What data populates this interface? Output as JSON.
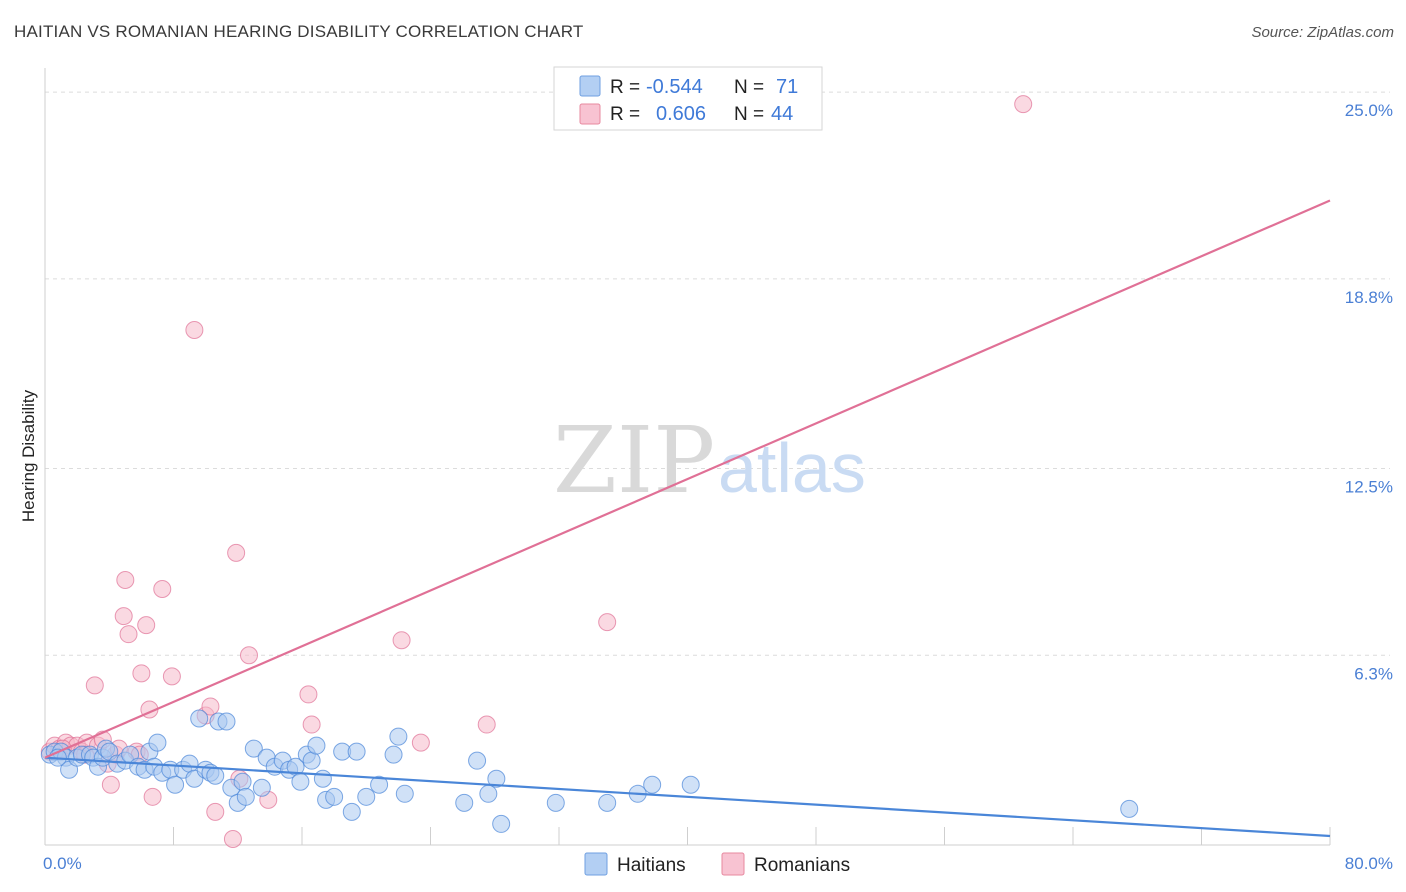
{
  "title": "HAITIAN VS ROMANIAN HEARING DISABILITY CORRELATION CHART",
  "source": "Source: ZipAtlas.com",
  "watermark": {
    "zip": "ZIP",
    "atlas": "atlas"
  },
  "colors": {
    "haitians": "#4a86d8",
    "romanians": "#e07096",
    "haitians_fill": "#a9c8f0",
    "romanians_fill": "#f5b9cb",
    "tick": "#4a7fd4"
  },
  "chart_data": {
    "type": "scatter",
    "title": "HAITIAN VS ROMANIAN HEARING DISABILITY CORRELATION CHART",
    "xlabel": "",
    "ylabel": "Hearing Disability",
    "xlim": [
      0,
      80
    ],
    "ylim": [
      0,
      25.8
    ],
    "x_tick_labels": [
      {
        "value": 0,
        "label": "0.0%"
      },
      {
        "value": 80,
        "label": "80.0%"
      }
    ],
    "y_tick_labels": [
      {
        "value": 6.3,
        "label": "6.3%"
      },
      {
        "value": 12.5,
        "label": "12.5%"
      },
      {
        "value": 18.8,
        "label": "18.8%"
      },
      {
        "value": 25.0,
        "label": "25.0%"
      }
    ],
    "legend": {
      "items": [
        {
          "series": "Haitians",
          "r_label": "R =",
          "r_value": "-0.544",
          "n_label": "N =",
          "n_value": "71"
        },
        {
          "series": "Romanians",
          "r_label": "R =",
          "r_value": "0.606",
          "n_label": "N =",
          "n_value": "44"
        }
      ]
    },
    "series": [
      {
        "name": "Haitians",
        "trend": [
          [
            0,
            2.9
          ],
          [
            80,
            0.3
          ]
        ],
        "points": [
          [
            0.3,
            3.0
          ],
          [
            0.6,
            3.1
          ],
          [
            1.0,
            3.1
          ],
          [
            1.3,
            2.9
          ],
          [
            1.5,
            2.5
          ],
          [
            2.0,
            2.9
          ],
          [
            2.3,
            3.0
          ],
          [
            2.8,
            3.0
          ],
          [
            3.0,
            2.9
          ],
          [
            3.3,
            2.6
          ],
          [
            3.6,
            2.9
          ],
          [
            3.8,
            3.2
          ],
          [
            4.0,
            3.1
          ],
          [
            4.5,
            2.7
          ],
          [
            5.0,
            2.8
          ],
          [
            5.3,
            3.0
          ],
          [
            5.8,
            2.6
          ],
          [
            6.2,
            2.5
          ],
          [
            6.5,
            3.1
          ],
          [
            6.8,
            2.6
          ],
          [
            7.0,
            3.4
          ],
          [
            7.3,
            2.4
          ],
          [
            7.8,
            2.5
          ],
          [
            8.1,
            2.0
          ],
          [
            8.6,
            2.5
          ],
          [
            9.0,
            2.7
          ],
          [
            9.3,
            2.2
          ],
          [
            9.6,
            4.2
          ],
          [
            10.0,
            2.5
          ],
          [
            10.3,
            2.4
          ],
          [
            10.6,
            2.3
          ],
          [
            10.8,
            4.1
          ],
          [
            11.3,
            4.1
          ],
          [
            11.6,
            1.9
          ],
          [
            12.0,
            1.4
          ],
          [
            12.3,
            2.1
          ],
          [
            12.5,
            1.6
          ],
          [
            13.0,
            3.2
          ],
          [
            13.5,
            1.9
          ],
          [
            13.8,
            2.9
          ],
          [
            14.3,
            2.6
          ],
          [
            14.8,
            2.8
          ],
          [
            15.2,
            2.5
          ],
          [
            15.6,
            2.6
          ],
          [
            15.9,
            2.1
          ],
          [
            16.3,
            3.0
          ],
          [
            16.6,
            2.8
          ],
          [
            16.9,
            3.3
          ],
          [
            17.3,
            2.2
          ],
          [
            17.5,
            1.5
          ],
          [
            18.0,
            1.6
          ],
          [
            18.5,
            3.1
          ],
          [
            19.1,
            1.1
          ],
          [
            19.4,
            3.1
          ],
          [
            20.0,
            1.6
          ],
          [
            20.8,
            2.0
          ],
          [
            21.7,
            3.0
          ],
          [
            22.0,
            3.6
          ],
          [
            22.4,
            1.7
          ],
          [
            26.1,
            1.4
          ],
          [
            26.9,
            2.8
          ],
          [
            27.6,
            1.7
          ],
          [
            28.1,
            2.2
          ],
          [
            28.4,
            0.7
          ],
          [
            31.8,
            1.4
          ],
          [
            35.0,
            1.4
          ],
          [
            36.9,
            1.7
          ],
          [
            37.8,
            2.0
          ],
          [
            40.2,
            2.0
          ],
          [
            67.5,
            1.2
          ],
          [
            0.8,
            2.9
          ]
        ]
      },
      {
        "name": "Romanians",
        "trend": [
          [
            0,
            2.9
          ],
          [
            80,
            21.4
          ]
        ],
        "points": [
          [
            0.3,
            3.1
          ],
          [
            0.6,
            3.3
          ],
          [
            0.9,
            3.2
          ],
          [
            1.3,
            3.4
          ],
          [
            1.6,
            3.3
          ],
          [
            2.0,
            3.3
          ],
          [
            2.3,
            3.1
          ],
          [
            2.6,
            3.4
          ],
          [
            3.1,
            5.3
          ],
          [
            3.3,
            3.3
          ],
          [
            3.6,
            3.5
          ],
          [
            3.9,
            2.7
          ],
          [
            4.1,
            2.0
          ],
          [
            4.4,
            3.0
          ],
          [
            4.6,
            3.2
          ],
          [
            4.9,
            7.6
          ],
          [
            5.0,
            8.8
          ],
          [
            5.2,
            7.0
          ],
          [
            5.7,
            3.1
          ],
          [
            5.9,
            3.0
          ],
          [
            6.0,
            5.7
          ],
          [
            6.3,
            7.3
          ],
          [
            6.5,
            4.5
          ],
          [
            6.7,
            1.6
          ],
          [
            7.3,
            8.5
          ],
          [
            7.9,
            5.6
          ],
          [
            9.3,
            17.1
          ],
          [
            10.0,
            4.3
          ],
          [
            10.3,
            4.6
          ],
          [
            10.6,
            1.1
          ],
          [
            11.7,
            0.2
          ],
          [
            11.9,
            9.7
          ],
          [
            12.1,
            2.2
          ],
          [
            12.7,
            6.3
          ],
          [
            13.9,
            1.5
          ],
          [
            16.4,
            5.0
          ],
          [
            16.6,
            4.0
          ],
          [
            22.2,
            6.8
          ],
          [
            23.4,
            3.4
          ],
          [
            27.5,
            4.0
          ],
          [
            35.0,
            7.4
          ],
          [
            60.9,
            24.6
          ],
          [
            2.5,
            3.0
          ],
          [
            1.1,
            3.2
          ]
        ]
      }
    ],
    "bottom_legend": [
      "Haitians",
      "Romanians"
    ]
  }
}
